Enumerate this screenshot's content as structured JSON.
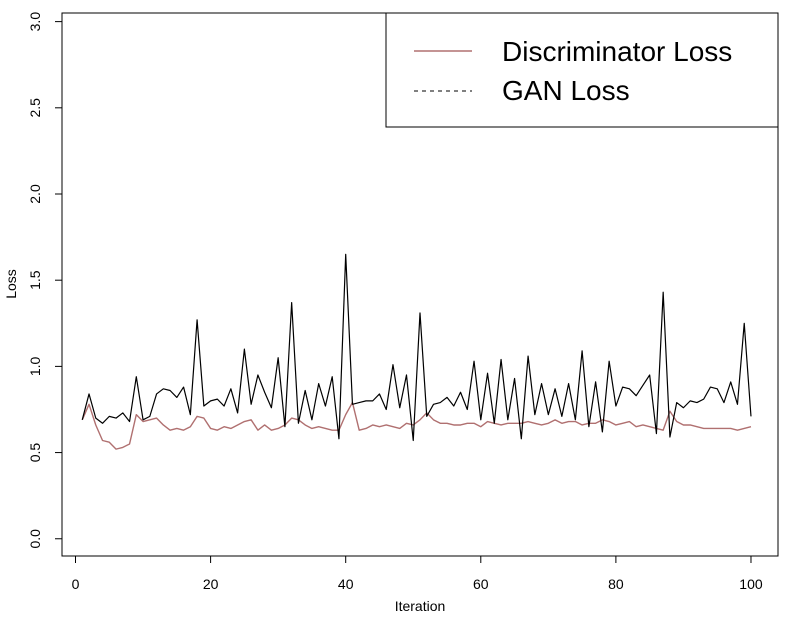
{
  "chart_data": {
    "type": "line",
    "title": "",
    "xlabel": "Iteration",
    "ylabel": "Loss",
    "xlim": [
      -2,
      104
    ],
    "ylim": [
      -0.1,
      3.05
    ],
    "xticks": [
      0,
      20,
      40,
      60,
      80,
      100
    ],
    "yticks": [
      0.0,
      0.5,
      1.0,
      1.5,
      2.0,
      2.5,
      3.0
    ],
    "xtick_labels": [
      "0",
      "20",
      "40",
      "60",
      "80",
      "100"
    ],
    "ytick_labels": [
      "0.0",
      "0.5",
      "1.0",
      "1.5",
      "2.0",
      "2.5",
      "3.0"
    ],
    "grid": false,
    "legend_position": "top-right",
    "x": [
      1,
      2,
      3,
      4,
      5,
      6,
      7,
      8,
      9,
      10,
      11,
      12,
      13,
      14,
      15,
      16,
      17,
      18,
      19,
      20,
      21,
      22,
      23,
      24,
      25,
      26,
      27,
      28,
      29,
      30,
      31,
      32,
      33,
      34,
      35,
      36,
      37,
      38,
      39,
      40,
      41,
      42,
      43,
      44,
      45,
      46,
      47,
      48,
      49,
      50,
      51,
      52,
      53,
      54,
      55,
      56,
      57,
      58,
      59,
      60,
      61,
      62,
      63,
      64,
      65,
      66,
      67,
      68,
      69,
      70,
      71,
      72,
      73,
      74,
      75,
      76,
      77,
      78,
      79,
      80,
      81,
      82,
      83,
      84,
      85,
      86,
      87,
      88,
      89,
      90,
      91,
      92,
      93,
      94,
      95,
      96,
      97,
      98,
      99,
      100
    ],
    "series": [
      {
        "name": "Discriminator Loss",
        "color": "#b07070",
        "style": "solid",
        "values": [
          0.69,
          0.78,
          0.66,
          0.57,
          0.56,
          0.52,
          0.53,
          0.55,
          0.72,
          0.68,
          0.69,
          0.7,
          0.66,
          0.63,
          0.64,
          0.63,
          0.65,
          0.71,
          0.7,
          0.64,
          0.63,
          0.65,
          0.64,
          0.66,
          0.68,
          0.69,
          0.63,
          0.66,
          0.63,
          0.64,
          0.66,
          0.7,
          0.69,
          0.66,
          0.64,
          0.65,
          0.64,
          0.63,
          0.63,
          0.72,
          0.79,
          0.63,
          0.64,
          0.66,
          0.65,
          0.66,
          0.65,
          0.64,
          0.67,
          0.66,
          0.69,
          0.73,
          0.69,
          0.67,
          0.67,
          0.66,
          0.66,
          0.67,
          0.67,
          0.65,
          0.68,
          0.67,
          0.66,
          0.67,
          0.67,
          0.67,
          0.68,
          0.67,
          0.66,
          0.67,
          0.69,
          0.67,
          0.68,
          0.68,
          0.66,
          0.67,
          0.67,
          0.69,
          0.68,
          0.66,
          0.67,
          0.68,
          0.65,
          0.66,
          0.65,
          0.64,
          0.63,
          0.74,
          0.68,
          0.66,
          0.66,
          0.65,
          0.64,
          0.64,
          0.64,
          0.64,
          0.64,
          0.63,
          0.64,
          0.65
        ]
      },
      {
        "name": "GAN Loss",
        "color": "#000000",
        "style": "dashed",
        "values": [
          0.69,
          0.84,
          0.7,
          0.67,
          0.71,
          0.7,
          0.73,
          0.68,
          0.94,
          0.69,
          0.71,
          0.84,
          0.87,
          0.86,
          0.82,
          0.88,
          0.72,
          1.27,
          0.77,
          0.8,
          0.81,
          0.77,
          0.87,
          0.73,
          1.1,
          0.78,
          0.95,
          0.85,
          0.76,
          1.05,
          0.65,
          1.37,
          0.67,
          0.86,
          0.69,
          0.9,
          0.77,
          0.94,
          0.58,
          1.65,
          0.78,
          0.79,
          0.8,
          0.8,
          0.84,
          0.75,
          1.01,
          0.76,
          0.95,
          0.57,
          1.31,
          0.71,
          0.78,
          0.79,
          0.82,
          0.77,
          0.85,
          0.75,
          1.03,
          0.69,
          0.96,
          0.67,
          1.04,
          0.69,
          0.93,
          0.58,
          1.06,
          0.72,
          0.9,
          0.72,
          0.87,
          0.71,
          0.9,
          0.69,
          1.09,
          0.65,
          0.91,
          0.62,
          1.03,
          0.77,
          0.88,
          0.87,
          0.83,
          0.89,
          0.95,
          0.61,
          1.43,
          0.59,
          0.79,
          0.76,
          0.8,
          0.79,
          0.81,
          0.88,
          0.87,
          0.79,
          0.91,
          0.78,
          1.25,
          0.71
        ]
      }
    ]
  }
}
